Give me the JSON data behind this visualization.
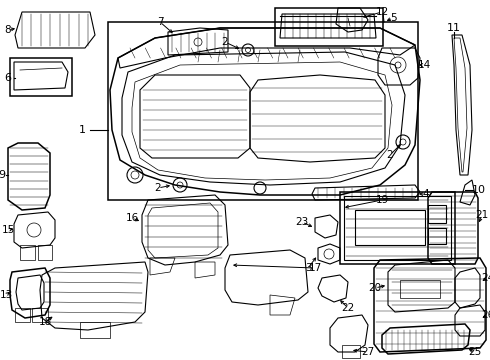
{
  "bg_color": "#ffffff",
  "line_color": "#000000",
  "fig_width": 4.9,
  "fig_height": 3.6,
  "dpi": 100,
  "label_fs": 7.5
}
